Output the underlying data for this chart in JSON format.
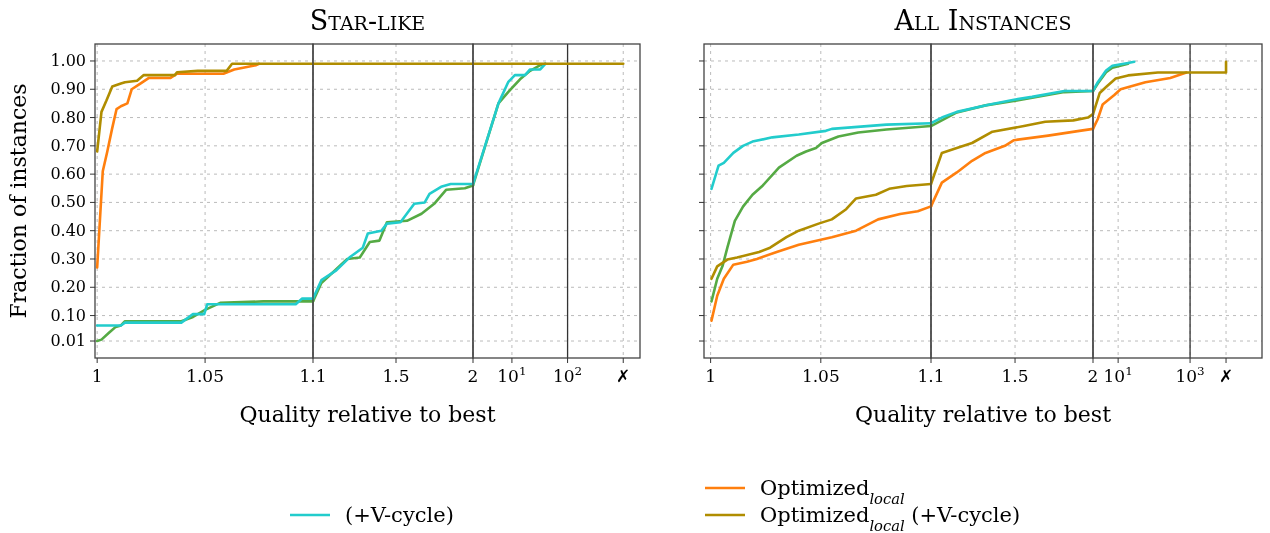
{
  "chart_data": [
    {
      "type": "line",
      "ylabel": "Fraction of instances",
      "grid": true,
      "line_style": "solid",
      "xlim": [
        0.999,
        1.1
      ],
      "ylim": [
        -0.05,
        1.06
      ],
      "xticks": [
        1,
        1.05,
        1.1
      ],
      "yticks": [
        0.01,
        {
          "value": 0.1,
          "label": "0.10"
        },
        {
          "value": 0.2,
          "label": "0.20"
        },
        {
          "value": 0.3,
          "label": "0.30"
        },
        {
          "value": 0.4,
          "label": "0.40"
        },
        {
          "value": 0.5,
          "label": "0.50"
        },
        {
          "value": 0.6,
          "label": "0.60"
        },
        {
          "value": 0.7,
          "label": "0.70"
        },
        {
          "value": 0.8,
          "label": "0.80"
        },
        {
          "value": 0.9,
          "label": "0.90"
        },
        {
          "value": 1,
          "label": "1.00"
        }
      ],
      "series": [
        {
          "color": "#55aa44",
          "x": [
            1,
            1.002,
            1.0056,
            1.0086,
            1.011,
            1.0129,
            1.039,
            1.0444,
            1.05,
            1.057,
            1.077,
            1.1
          ],
          "values": [
            0.01,
            0.015,
            0.04,
            0.06,
            0.065,
            0.08,
            0.08,
            0.095,
            0.12,
            0.145,
            0.15,
            0.15
          ]
        },
        {
          "color": "#22cccc",
          "x": [
            1,
            1.011,
            1.0129,
            1.039,
            1.0444,
            1.0496,
            1.051,
            1.092,
            1.095,
            1.1
          ],
          "values": [
            0.065,
            0.065,
            0.075,
            0.075,
            0.105,
            0.105,
            0.14,
            0.14,
            0.16,
            0.16
          ]
        },
        {
          "color": "#ff7f0e",
          "x": [
            1,
            1.0026,
            1.0047,
            1.0069,
            1.009,
            1.011,
            1.014,
            1.016,
            1.02,
            1.024,
            1.034,
            1.037,
            1.0585,
            1.0635,
            1.0735,
            1.075
          ],
          "values": [
            0.27,
            0.61,
            0.68,
            0.76,
            0.83,
            0.84,
            0.85,
            0.9,
            0.92,
            0.94,
            0.94,
            0.955,
            0.955,
            0.97,
            0.985,
            0.99
          ]
        },
        {
          "color": "#b08d00",
          "x": [
            1,
            1.002,
            1.0043,
            1.007,
            1.011,
            1.0129,
            1.0185,
            1.0216,
            1.036,
            1.037,
            1.0466,
            1.06,
            1.0625,
            1.1
          ],
          "values": [
            0.68,
            0.82,
            0.86,
            0.91,
            0.92,
            0.925,
            0.93,
            0.95,
            0.95,
            0.96,
            0.965,
            0.965,
            0.99,
            0.99
          ]
        }
      ]
    },
    {
      "type": "line",
      "title": "Star-like",
      "xlabel": "Quality relative to best",
      "legend": "bottom",
      "grid": true,
      "tick_labels": "x",
      "log": "x",
      "line_style": "solid",
      "xlim": [
        1.1,
        2
      ],
      "ylim": [
        -0.05,
        1.06
      ],
      "xticks": [
        1.5,
        2
      ],
      "yticks": [
        0.01,
        0.1,
        0.2,
        0.3,
        0.4,
        0.5,
        0.6,
        0.7,
        0.8,
        0.9,
        1
      ],
      "series": [
        {
          "color": "#55aa44",
          "x": [
            1.1,
            1.135,
            1.195,
            1.25,
            1.31,
            1.36,
            1.41,
            1.45,
            1.5625,
            1.65,
            1.73,
            1.81,
            1.94,
            2
          ],
          "values": [
            0.15,
            0.215,
            0.26,
            0.3,
            0.305,
            0.36,
            0.365,
            0.43,
            0.435,
            0.46,
            0.495,
            0.545,
            0.55,
            0.56
          ]
        },
        {
          "name": "(+V-cycle)",
          "color": "#22cccc",
          "x": [
            1.1,
            1.135,
            1.2,
            1.26,
            1.325,
            1.35,
            1.42,
            1.45,
            1.525,
            1.606,
            1.67,
            1.7,
            1.775,
            1.84,
            2
          ],
          "values": [
            0.16,
            0.225,
            0.26,
            0.305,
            0.34,
            0.39,
            0.4,
            0.425,
            0.43,
            0.495,
            0.5,
            0.53,
            0.555,
            0.565,
            0.565
          ]
        },
        {
          "name": "Optimized$_{local}$",
          "color": "#ff7f0e"
        },
        {
          "name": "Optimized$_{local}$ (+V-cycle)",
          "color": "#b08d00",
          "x": [
            1.1,
            2
          ],
          "values": [
            0.99,
            0.99
          ]
        }
      ]
    },
    {
      "type": "line",
      "grid": true,
      "tick_labels": "x",
      "log": "x",
      "line_style": "solid",
      "xlim": [
        2,
        2000
      ],
      "ylim": [
        -0.05,
        1.06
      ],
      "xticks": [
        {
          "value": 10,
          "label": "10$^{1}$"
        },
        {
          "value": 100,
          "label": "10$^{2}$"
        },
        {
          "value": 1000,
          "label": "✗"
        }
      ],
      "yticks": [
        0.01,
        0.1,
        0.2,
        0.3,
        0.4,
        0.5,
        0.6,
        0.7,
        0.8,
        0.9,
        1
      ],
      "ref_lines": [
        {
          "axis": "x",
          "value": 100,
          "color": "#333333"
        }
      ],
      "series": [
        {
          "color": "#55aa44",
          "x": [
            2,
            5.73,
            8.56,
            13.98,
            21.2,
            32.3,
            39.8
          ],
          "values": [
            0.56,
            0.85,
            0.89,
            0.935,
            0.965,
            0.985,
            0.99
          ]
        },
        {
          "color": "#22cccc",
          "x": [
            2,
            5.73,
            8.56,
            11.3,
            17.2,
            21.2,
            32.3,
            39.8
          ],
          "values": [
            0.565,
            0.85,
            0.925,
            0.95,
            0.95,
            0.97,
            0.97,
            0.99
          ]
        },
        {
          "color": "#b08d00",
          "x": [
            2,
            1000
          ],
          "values": [
            0.99,
            0.99
          ]
        }
      ]
    },
    {
      "type": "line",
      "grid": true,
      "tick_labels": "x",
      "line_style": "solid",
      "xlim": [
        0.997,
        1.1
      ],
      "ylim": [
        -0.05,
        1.06
      ],
      "xticks": [
        1,
        1.05,
        1.1
      ],
      "yticks": [
        0.01,
        0.1,
        0.2,
        0.3,
        0.4,
        0.5,
        0.6,
        0.7,
        0.8,
        0.9,
        1
      ],
      "series": [
        {
          "color": "#55aa44",
          "x": [
            1.0004,
            1.003,
            1.0054,
            1.0076,
            1.011,
            1.0147,
            1.019,
            1.0237,
            1.031,
            1.039,
            1.0433,
            1.0478,
            1.0505,
            1.058,
            1.067,
            1.0798,
            1.1
          ],
          "values": [
            0.15,
            0.23,
            0.275,
            0.34,
            0.435,
            0.485,
            0.527,
            0.56,
            0.623,
            0.665,
            0.68,
            0.692,
            0.71,
            0.733,
            0.747,
            0.758,
            0.77
          ]
        },
        {
          "color": "#22cccc",
          "x": [
            1.0004,
            1.0036,
            1.006,
            1.0103,
            1.0147,
            1.019,
            1.028,
            1.04,
            1.0523,
            1.055,
            1.0798,
            1.1
          ],
          "values": [
            0.548,
            0.63,
            0.64,
            0.675,
            0.7,
            0.715,
            0.73,
            0.74,
            0.753,
            0.76,
            0.775,
            0.78
          ]
        },
        {
          "color": "#ff7f0e",
          "x": [
            1.0004,
            1.003,
            1.006,
            1.0103,
            1.0165,
            1.021,
            1.03,
            1.04,
            1.049,
            1.055,
            1.066,
            1.076,
            1.086,
            1.094,
            1.1
          ],
          "values": [
            0.082,
            0.17,
            0.23,
            0.28,
            0.29,
            0.3,
            0.325,
            0.35,
            0.366,
            0.377,
            0.4,
            0.44,
            0.459,
            0.469,
            0.486
          ]
        },
        {
          "color": "#b08d00",
          "x": [
            1.0004,
            1.003,
            1.0076,
            1.012,
            1.022,
            1.027,
            1.0344,
            1.04,
            1.049,
            1.055,
            1.0615,
            1.066,
            1.075,
            1.081,
            1.089,
            1.1
          ],
          "values": [
            0.23,
            0.274,
            0.298,
            0.305,
            0.325,
            0.34,
            0.377,
            0.4,
            0.425,
            0.44,
            0.476,
            0.514,
            0.527,
            0.548,
            0.558,
            0.565
          ]
        }
      ]
    },
    {
      "type": "line",
      "title": "All Instances",
      "xlabel": "Quality relative to best",
      "grid": true,
      "tick_labels": "x",
      "log": "x",
      "line_style": "solid",
      "xlim": [
        1.1,
        2
      ],
      "ylim": [
        -0.05,
        1.06
      ],
      "xticks": [
        1.5,
        2
      ],
      "yticks": [
        0.01,
        0.1,
        0.2,
        0.3,
        0.4,
        0.5,
        0.6,
        0.7,
        0.8,
        0.9,
        1
      ],
      "series": [
        {
          "color": "#55aa44",
          "x": [
            1.1,
            1.21,
            1.345,
            1.51,
            1.799,
            2
          ],
          "values": [
            0.77,
            0.818,
            0.843,
            0.86,
            0.89,
            0.894
          ]
        },
        {
          "color": "#22cccc",
          "x": [
            1.1,
            1.145,
            1.21,
            1.36,
            1.494,
            1.597,
            1.799,
            2
          ],
          "values": [
            0.78,
            0.8,
            0.82,
            0.845,
            0.863,
            0.873,
            0.894,
            0.894
          ]
        },
        {
          "color": "#ff7f0e",
          "x": [
            1.1,
            1.145,
            1.21,
            1.28,
            1.345,
            1.445,
            1.494,
            1.695,
            1.902,
            2
          ],
          "values": [
            0.486,
            0.57,
            0.606,
            0.647,
            0.675,
            0.7,
            0.72,
            0.736,
            0.753,
            0.76
          ]
        },
        {
          "color": "#b08d00",
          "x": [
            1.1,
            1.145,
            1.21,
            1.28,
            1.38,
            1.55,
            1.677,
            1.86,
            1.963,
            2
          ],
          "values": [
            0.565,
            0.675,
            0.692,
            0.71,
            0.75,
            0.77,
            0.785,
            0.79,
            0.8,
            0.812
          ]
        }
      ]
    },
    {
      "type": "line",
      "grid": true,
      "tick_labels": "x",
      "log": "x",
      "line_style": "solid",
      "xlim": [
        2,
        100000
      ],
      "ylim": [
        -0.05,
        1.06
      ],
      "xticks": [
        {
          "value": 10,
          "label": "10$^{1}$"
        },
        {
          "value": 1000,
          "label": "10$^{3}$"
        },
        {
          "value": 10000,
          "label": "✗"
        }
      ],
      "yticks": [
        0.01,
        0.1,
        0.2,
        0.3,
        0.4,
        0.5,
        0.6,
        0.7,
        0.8,
        0.9,
        1
      ],
      "ref_lines": [
        {
          "axis": "x",
          "value": 1000,
          "color": "#333333"
        }
      ],
      "series": [
        {
          "color": "#55aa44",
          "x": [
            2,
            2.72,
            4.62,
            6.92,
            18.9
          ],
          "values": [
            0.894,
            0.92,
            0.96,
            0.976,
            0.99
          ]
        },
        {
          "color": "#22cccc",
          "x": [
            2,
            2.72,
            4.62,
            6.92,
            18.9,
            28.1
          ],
          "values": [
            0.894,
            0.925,
            0.966,
            0.983,
            0.993,
            0.997
          ]
        },
        {
          "color": "#ff7f0e",
          "x": [
            2,
            2.72,
            3.71,
            7.82,
            11.7,
            57.3,
            281,
            790
          ],
          "values": [
            0.76,
            0.795,
            0.846,
            0.88,
            0.9,
            0.925,
            0.94,
            0.959
          ]
        },
        {
          "color": "#b08d00",
          "x": [
            2,
            3.08,
            4.62,
            8.56,
            18.9,
            127,
            1000,
            10000,
            10000
          ],
          "values": [
            0.812,
            0.887,
            0.908,
            0.938,
            0.949,
            0.959,
            0.959,
            0.959,
            0.997
          ]
        }
      ]
    }
  ]
}
